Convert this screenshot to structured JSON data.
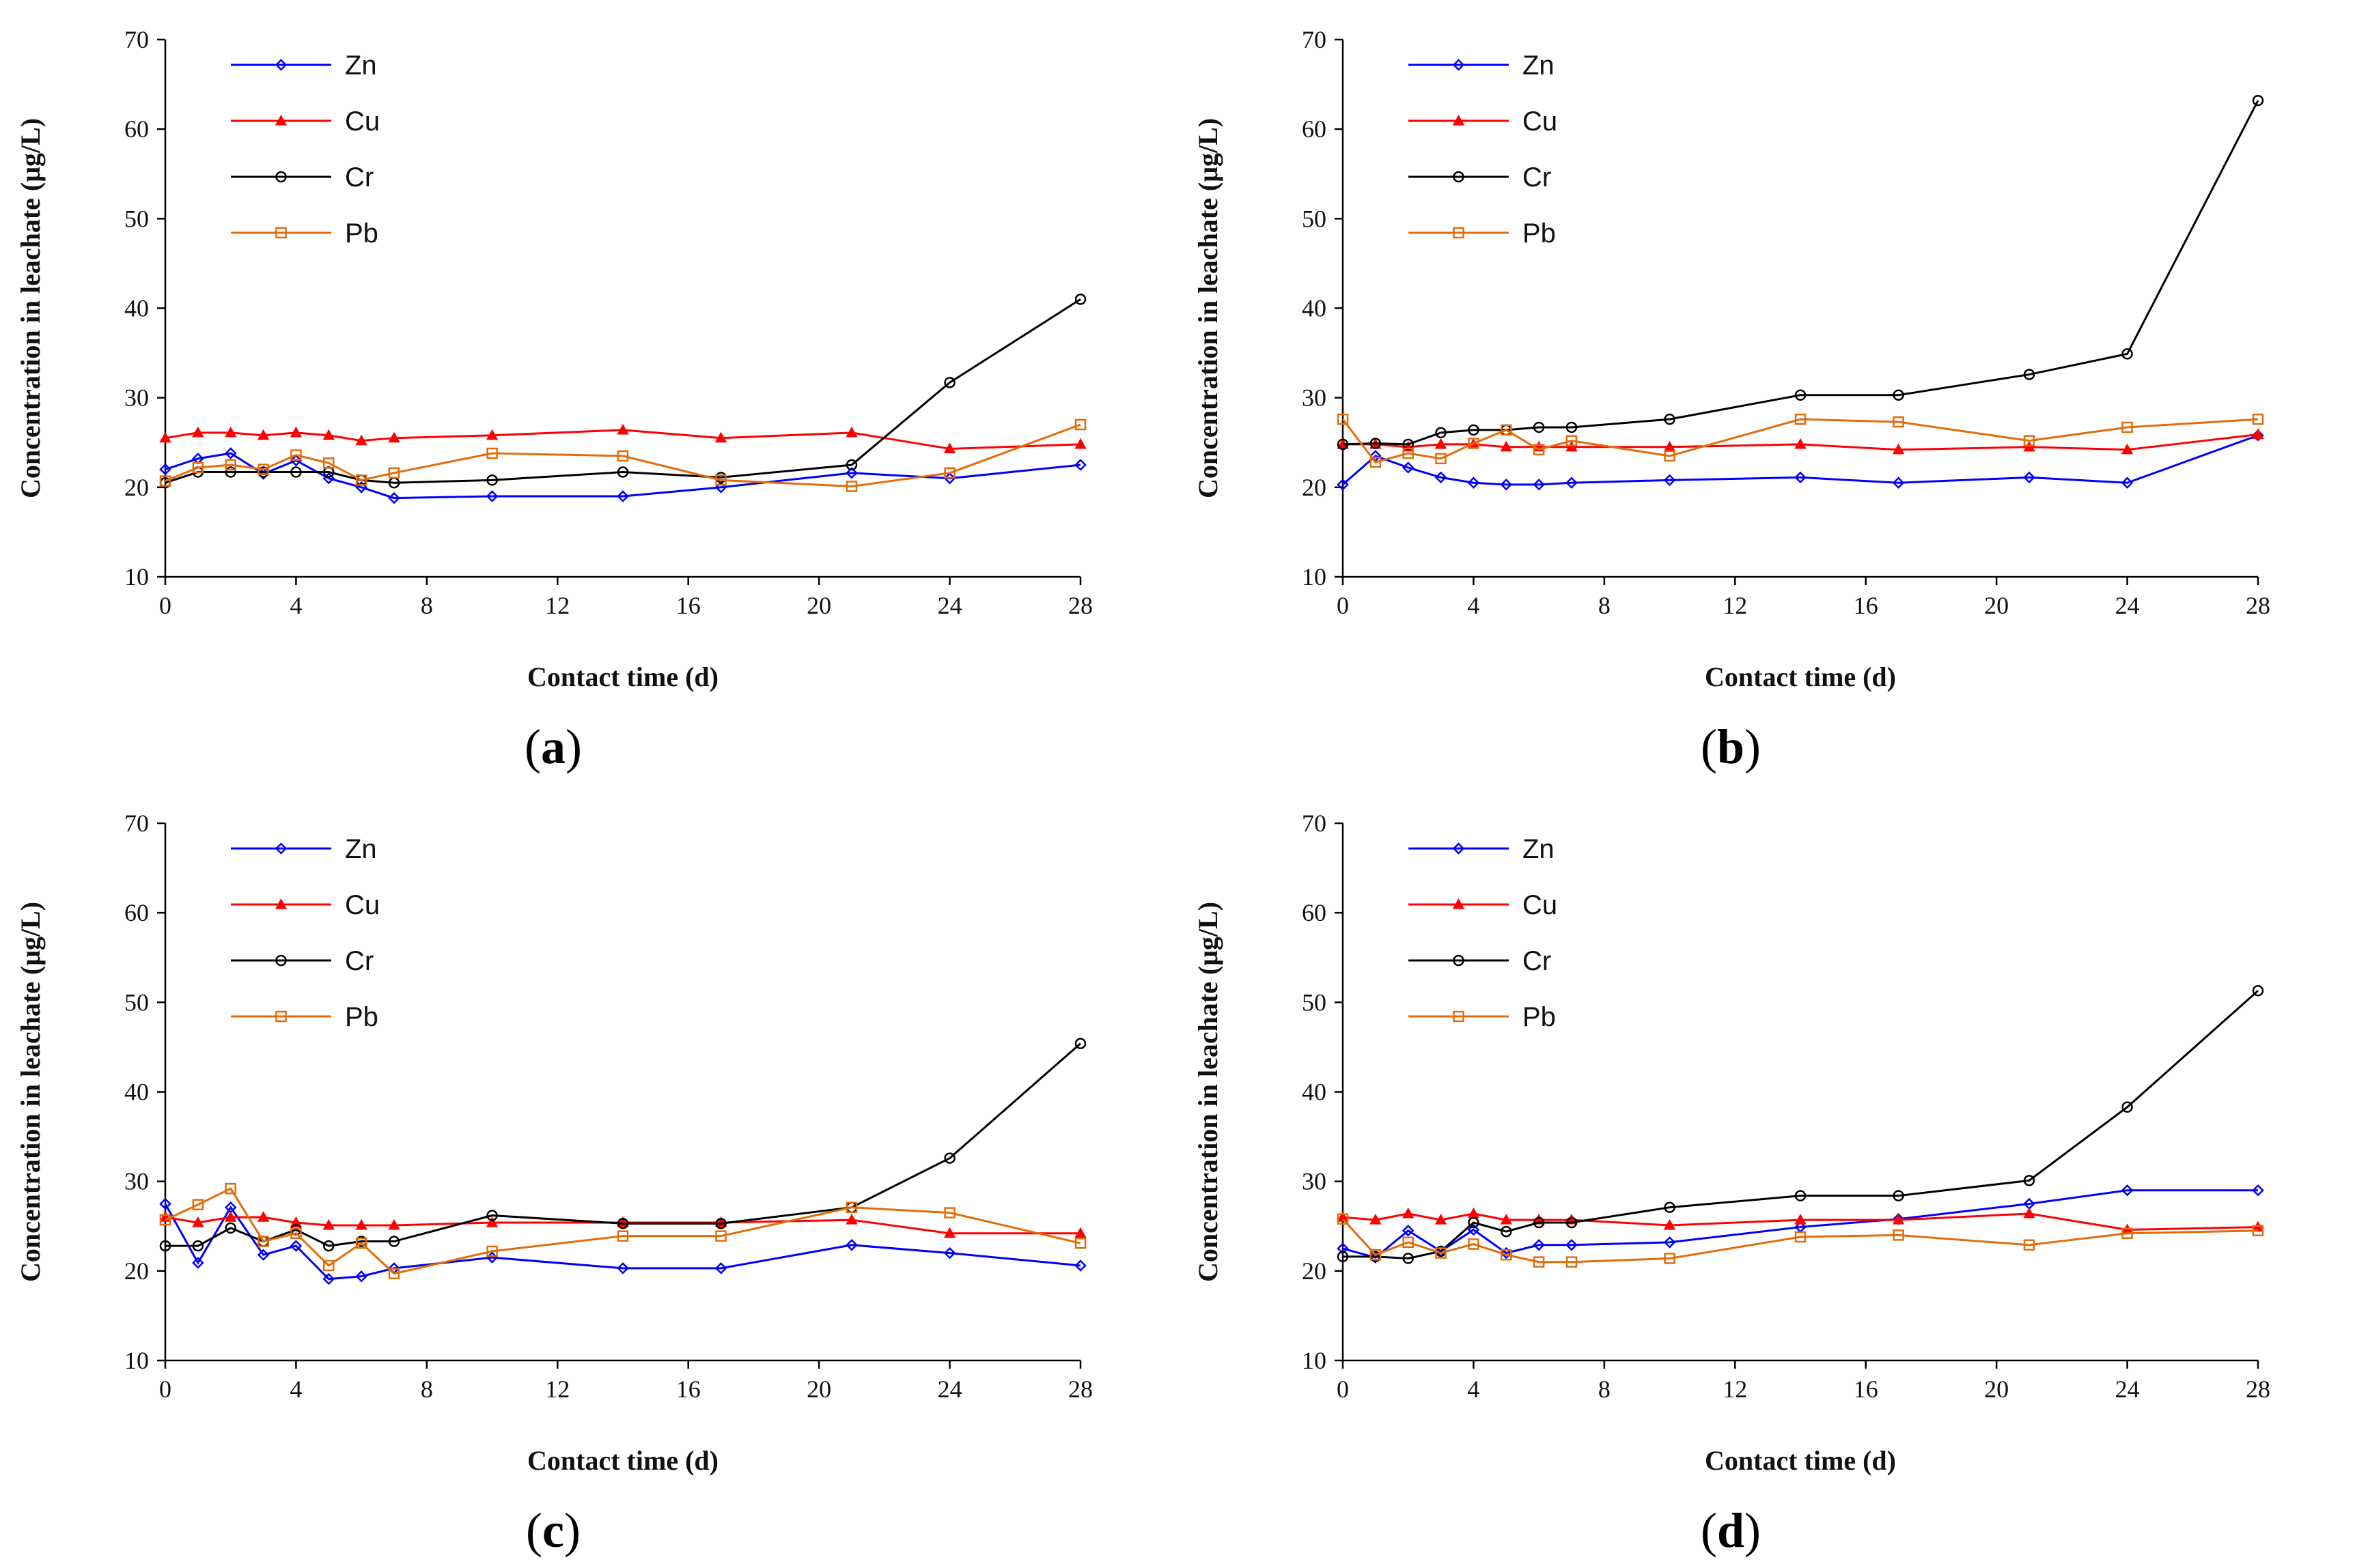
{
  "figure": {
    "panels": [
      {
        "id": "a",
        "label": "a"
      },
      {
        "id": "b",
        "label": "b"
      },
      {
        "id": "c",
        "label": "c"
      },
      {
        "id": "d",
        "label": "d"
      }
    ]
  },
  "chart_data": [
    {
      "type": "line",
      "panel": "a",
      "xlabel": "Contact time (d)",
      "ylabel": "Concentration in leachate (μg/L)",
      "xlim": [
        0,
        28
      ],
      "ylim": [
        10,
        70
      ],
      "xticks": [
        "0",
        "4",
        "8",
        "12",
        "16",
        "20",
        "24",
        "28"
      ],
      "yticks": [
        "10",
        "20",
        "30",
        "40",
        "50",
        "60",
        "70"
      ],
      "x": [
        0,
        1,
        2,
        3,
        4,
        5,
        6,
        7,
        10,
        14,
        17,
        21,
        24,
        28
      ],
      "legend_position": "top-left",
      "series": [
        {
          "name": "Zn",
          "color": "#0000ff",
          "marker": "diamond",
          "values": [
            22,
            23.2,
            23.8,
            21.5,
            23,
            21,
            20,
            18.8,
            19,
            19,
            20,
            21.6,
            21,
            22.5
          ]
        },
        {
          "name": "Cu",
          "color": "#ff0000",
          "marker": "triangle",
          "values": [
            25.5,
            26.1,
            26.1,
            25.8,
            26.1,
            25.8,
            25.2,
            25.5,
            25.8,
            26.4,
            25.5,
            26.1,
            24.3,
            24.8
          ]
        },
        {
          "name": "Cr",
          "color": "#000000",
          "marker": "circle",
          "values": [
            20.5,
            21.7,
            21.7,
            21.7,
            21.7,
            21.7,
            20.8,
            20.5,
            20.8,
            21.7,
            21.1,
            22.5,
            31.7,
            41
          ]
        },
        {
          "name": "Pb",
          "color": "#e36c09",
          "marker": "square",
          "values": [
            20.7,
            22.2,
            22.5,
            22,
            23.6,
            22.7,
            20.8,
            21.6,
            23.8,
            23.5,
            20.8,
            20.1,
            21.6,
            27
          ]
        }
      ]
    },
    {
      "type": "line",
      "panel": "b",
      "xlabel": "Contact time (d)",
      "ylabel": "Concentration in leachate (μg/L)",
      "xlim": [
        0,
        28
      ],
      "ylim": [
        10,
        70
      ],
      "xticks": [
        "0",
        "4",
        "8",
        "12",
        "16",
        "20",
        "24",
        "28"
      ],
      "yticks": [
        "10",
        "20",
        "30",
        "40",
        "50",
        "60",
        "70"
      ],
      "x": [
        0,
        1,
        2,
        3,
        4,
        5,
        6,
        7,
        10,
        14,
        17,
        21,
        24,
        28
      ],
      "legend_position": "top-left",
      "series": [
        {
          "name": "Zn",
          "color": "#0000ff",
          "marker": "diamond",
          "values": [
            20.3,
            23.5,
            22.2,
            21.1,
            20.5,
            20.3,
            20.3,
            20.5,
            20.8,
            21.1,
            20.5,
            21.1,
            20.5,
            25.8
          ]
        },
        {
          "name": "Cu",
          "color": "#ff0000",
          "marker": "triangle",
          "values": [
            24.8,
            24.8,
            24.5,
            24.8,
            24.8,
            24.5,
            24.5,
            24.5,
            24.5,
            24.8,
            24.2,
            24.5,
            24.2,
            25.9
          ]
        },
        {
          "name": "Cr",
          "color": "#000000",
          "marker": "circle",
          "values": [
            24.8,
            24.9,
            24.8,
            26.1,
            26.4,
            26.4,
            26.7,
            26.7,
            27.6,
            30.3,
            30.3,
            32.6,
            34.9,
            63.2
          ]
        },
        {
          "name": "Pb",
          "color": "#e36c09",
          "marker": "square",
          "values": [
            27.6,
            22.8,
            23.8,
            23.2,
            24.9,
            26.4,
            24.2,
            25.2,
            23.5,
            27.6,
            27.3,
            25.2,
            26.7,
            27.6
          ]
        }
      ]
    },
    {
      "type": "line",
      "panel": "c",
      "xlabel": "Contact time (d)",
      "ylabel": "Concentration in leachate (μg/L)",
      "xlim": [
        0,
        28
      ],
      "ylim": [
        10,
        70
      ],
      "xticks": [
        "0",
        "4",
        "8",
        "12",
        "16",
        "20",
        "24",
        "28"
      ],
      "yticks": [
        "10",
        "20",
        "30",
        "40",
        "50",
        "60",
        "70"
      ],
      "x": [
        0,
        1,
        2,
        3,
        4,
        5,
        6,
        7,
        10,
        14,
        17,
        21,
        24,
        28
      ],
      "legend_position": "top-left",
      "series": [
        {
          "name": "Zn",
          "color": "#0000ff",
          "marker": "diamond",
          "values": [
            27.5,
            20.9,
            27.1,
            21.8,
            22.8,
            19.1,
            19.4,
            20.3,
            21.5,
            20.3,
            20.3,
            22.9,
            22,
            20.6
          ]
        },
        {
          "name": "Cu",
          "color": "#ff0000",
          "marker": "triangle",
          "values": [
            26,
            25.4,
            26,
            26,
            25.4,
            25.1,
            25.1,
            25.1,
            25.4,
            25.4,
            25.4,
            25.7,
            24.2,
            24.2
          ]
        },
        {
          "name": "Cr",
          "color": "#000000",
          "marker": "circle",
          "values": [
            22.8,
            22.8,
            24.8,
            23.3,
            24.6,
            22.8,
            23.3,
            23.3,
            26.2,
            25.3,
            25.3,
            27.1,
            32.6,
            45.4
          ]
        },
        {
          "name": "Pb",
          "color": "#e36c09",
          "marker": "square",
          "values": [
            25.7,
            27.4,
            29.2,
            23.3,
            24.2,
            20.6,
            23.1,
            19.7,
            22.2,
            23.9,
            23.9,
            27.1,
            26.5,
            23.1
          ]
        }
      ]
    },
    {
      "type": "line",
      "panel": "d",
      "xlabel": "Contact time (d)",
      "ylabel": "Concentration in leachate (μg/L)",
      "xlim": [
        0,
        28
      ],
      "ylim": [
        10,
        70
      ],
      "xticks": [
        "0",
        "4",
        "8",
        "12",
        "16",
        "20",
        "24",
        "28"
      ],
      "yticks": [
        "10",
        "20",
        "30",
        "40",
        "50",
        "60",
        "70"
      ],
      "x": [
        0,
        1,
        2,
        3,
        4,
        5,
        6,
        7,
        10,
        14,
        17,
        21,
        24,
        28
      ],
      "legend_position": "top-left",
      "series": [
        {
          "name": "Zn",
          "color": "#0000ff",
          "marker": "diamond",
          "values": [
            22.5,
            21.5,
            24.5,
            22.2,
            24.6,
            22,
            22.9,
            22.9,
            23.2,
            24.9,
            25.8,
            27.5,
            29,
            29
          ]
        },
        {
          "name": "Cu",
          "color": "#ff0000",
          "marker": "triangle",
          "values": [
            26,
            25.7,
            26.4,
            25.7,
            26.4,
            25.7,
            25.7,
            25.7,
            25.1,
            25.7,
            25.7,
            26.4,
            24.6,
            24.9
          ]
        },
        {
          "name": "Cr",
          "color": "#000000",
          "marker": "circle",
          "values": [
            21.6,
            21.6,
            21.4,
            22.2,
            25.4,
            24.4,
            25.4,
            25.4,
            27.1,
            28.4,
            28.4,
            30.1,
            38.3,
            51.3
          ]
        },
        {
          "name": "Pb",
          "color": "#e36c09",
          "marker": "square",
          "values": [
            25.8,
            21.8,
            23.2,
            22,
            23,
            21.8,
            21,
            21,
            21.4,
            23.8,
            24,
            22.9,
            24.2,
            24.5
          ]
        }
      ]
    }
  ]
}
